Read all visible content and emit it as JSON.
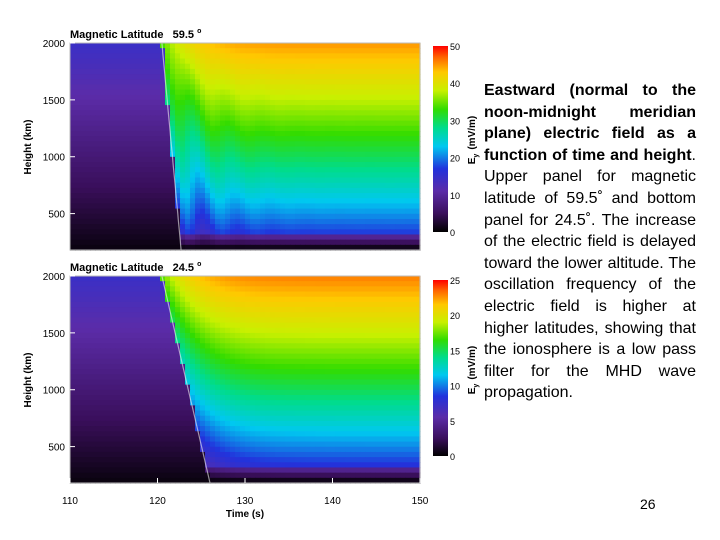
{
  "chart_data": [
    {
      "type": "heatmap",
      "title": "Magnetic Latitude 59.5°",
      "title_text": "Magnetic Latitude",
      "title_value": "59.5",
      "title_degree": "o",
      "xlabel": "Time (s)",
      "ylabel": "Height (km)",
      "xlim": [
        110,
        150
      ],
      "ylim": [
        180,
        2000
      ],
      "yticks": [
        500,
        1000,
        1500,
        2000
      ],
      "colorbar": {
        "label": "Ey (mV/m)",
        "label_main": "E",
        "label_sub": "y",
        "label_unit": "(mV/m)",
        "range": [
          0,
          50
        ],
        "ticks": [
          0,
          10,
          20,
          30,
          40,
          50
        ]
      },
      "onset_time": 120.5,
      "dip_times": [
        123.2,
        125.6
      ],
      "dip_min_heights": [
        350,
        250
      ],
      "field_base_value": 13,
      "field_top_value": 45
    },
    {
      "type": "heatmap",
      "title": "Magnetic Latitude 24.5°",
      "title_text": "Magnetic Latitude",
      "title_value": "24.5",
      "title_degree": "o",
      "xlabel": "Time (s)",
      "ylabel": "Height (km)",
      "xlim": [
        110,
        150
      ],
      "xticks": [
        110,
        120,
        130,
        140,
        150
      ],
      "ylim": [
        180,
        2000
      ],
      "yticks": [
        500,
        1000,
        1500,
        2000
      ],
      "colorbar": {
        "label": "Ey (mV/m)",
        "label_main": "E",
        "label_sub": "y",
        "label_unit": "(mV/m)",
        "range": [
          0,
          25
        ],
        "ticks": [
          0,
          5,
          10,
          15,
          20,
          25
        ]
      },
      "onset_time": 120.5,
      "dip_times": [
        127.0
      ],
      "dip_min_heights": [
        190
      ],
      "field_base_value": 6,
      "field_top_value": 23
    }
  ],
  "caption": {
    "bold_text": "Eastward (normal to the noon-midnight meridian plane) electric field as a function of time and height",
    "plain_text": ". Upper panel for magnetic latitude of 59.5˚ and bottom panel for 24.5˚. The increase of the electric field is delayed toward the lower altitude. The oscillation frequency of the electric field is higher at higher latitudes, showing that the ionosphere is a low pass filter for the MHD wave propagation."
  },
  "page_number": "26"
}
